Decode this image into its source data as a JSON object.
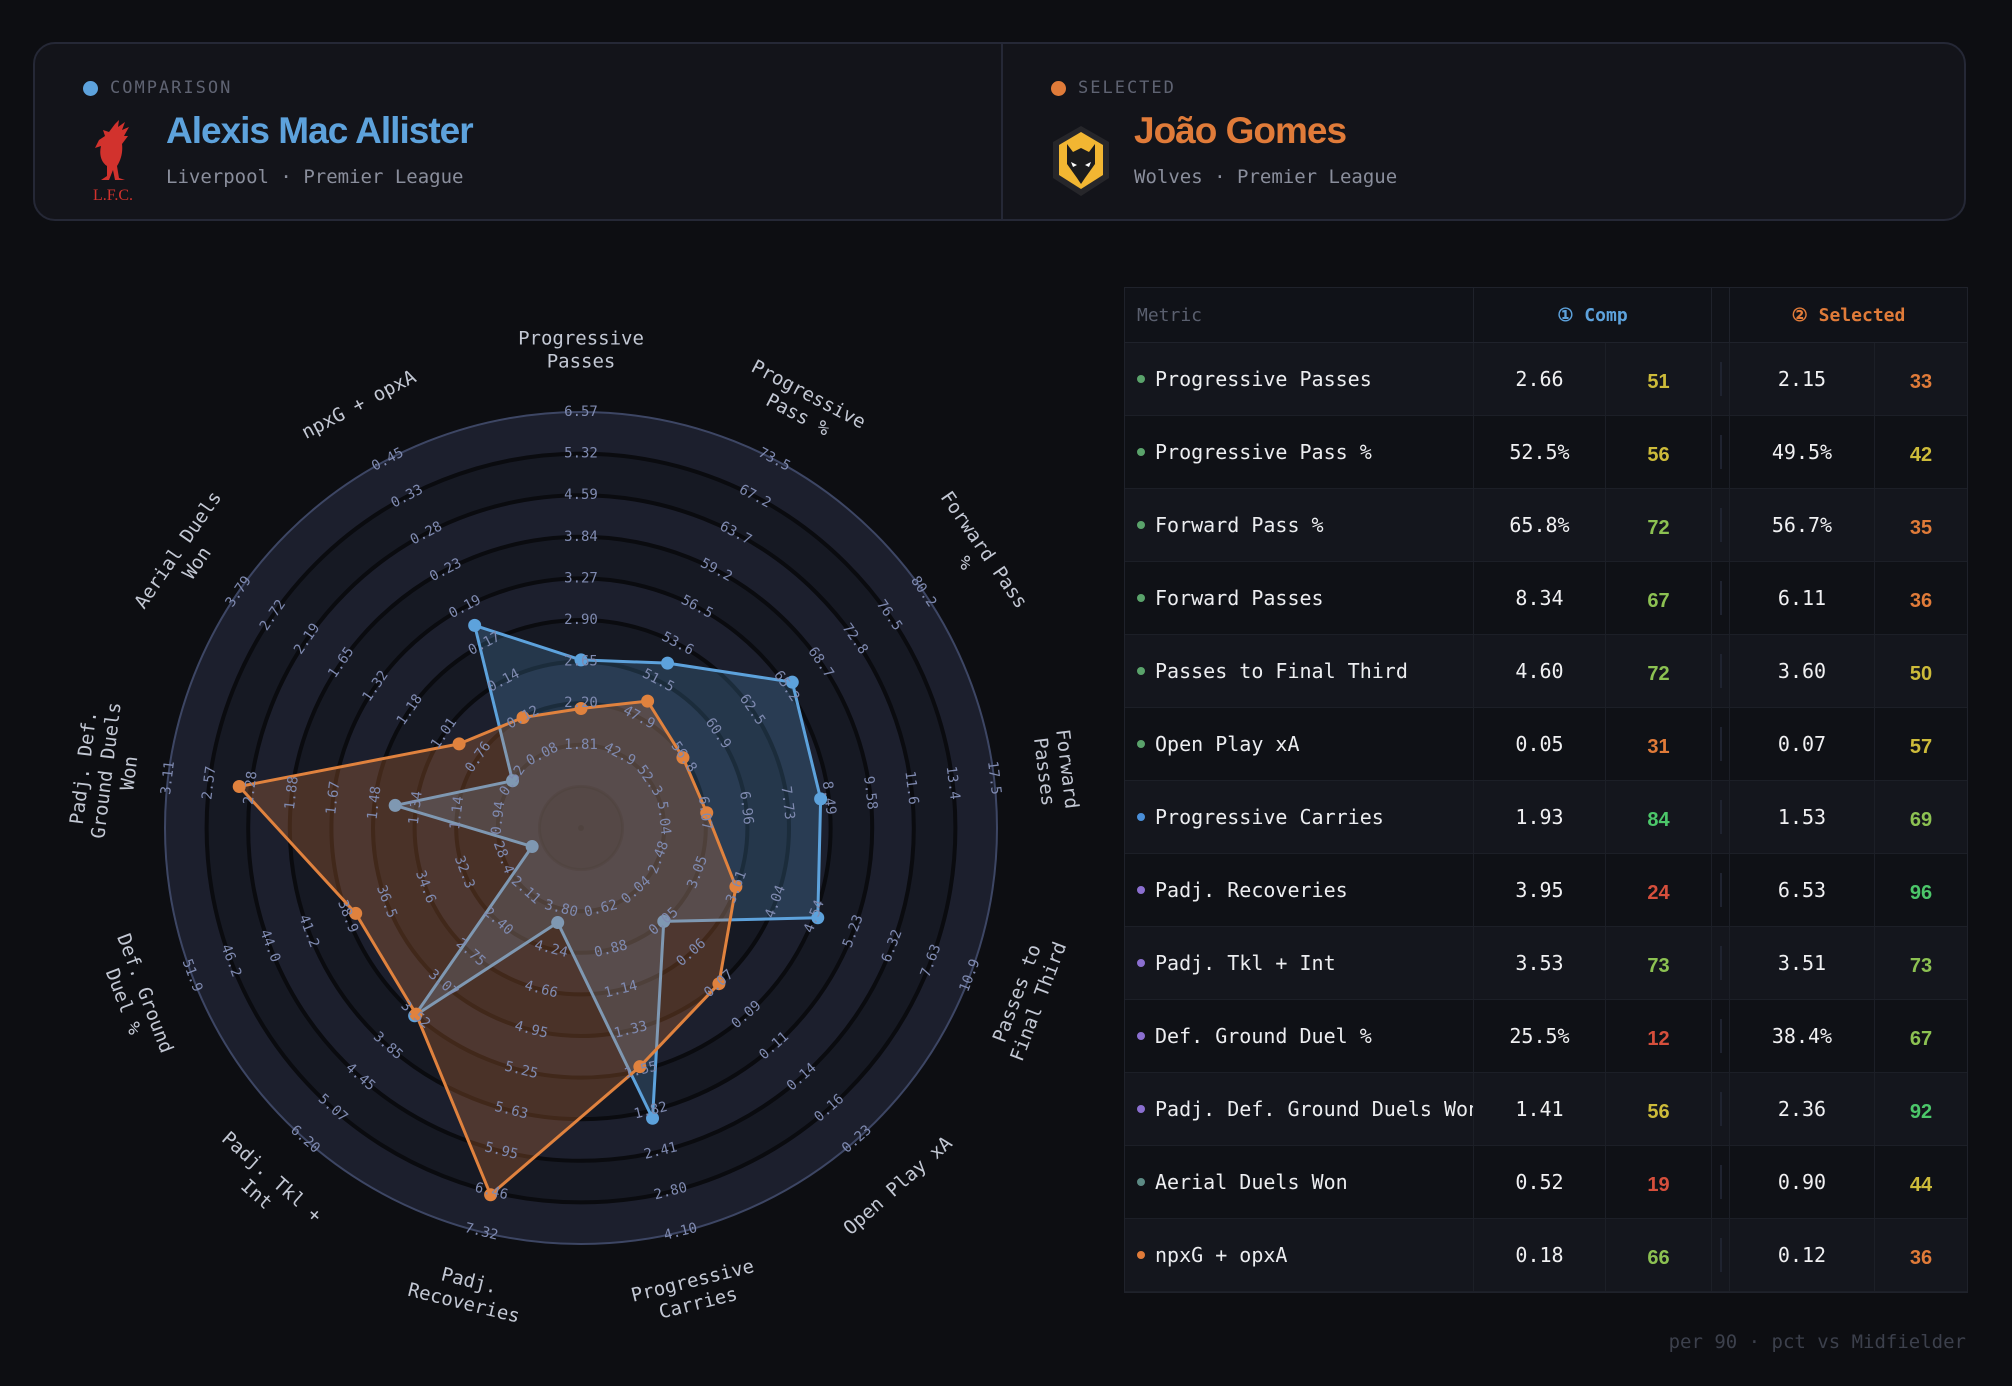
{
  "comparison": {
    "role_label": "COMPARISON",
    "name": "Alexis Mac Allister",
    "team": "Liverpool",
    "league": "Premier League",
    "separator": "·",
    "color": "#5da2dc",
    "crest_text": "L.F.C."
  },
  "selected": {
    "role_label": "SELECTED",
    "name": "João Gomes",
    "team": "Wolves",
    "league": "Premier League",
    "separator": "·",
    "color": "#e07b39"
  },
  "table": {
    "header_metric": "Metric",
    "header_comp": "① Comp",
    "header_selected": "② Selected",
    "rows": [
      {
        "metric": "Progressive Passes",
        "cat": "passing",
        "comp_value": "2.66",
        "comp_pct": 51,
        "sel_value": "2.15",
        "sel_pct": 33
      },
      {
        "metric": "Progressive Pass %",
        "cat": "passing",
        "comp_value": "52.5%",
        "comp_pct": 56,
        "sel_value": "49.5%",
        "sel_pct": 42
      },
      {
        "metric": "Forward Pass %",
        "cat": "passing",
        "comp_value": "65.8%",
        "comp_pct": 72,
        "sel_value": "56.7%",
        "sel_pct": 35
      },
      {
        "metric": "Forward Passes",
        "cat": "passing",
        "comp_value": "8.34",
        "comp_pct": 67,
        "sel_value": "6.11",
        "sel_pct": 36
      },
      {
        "metric": "Passes to Final Third",
        "cat": "passing",
        "comp_value": "4.60",
        "comp_pct": 72,
        "sel_value": "3.60",
        "sel_pct": 50
      },
      {
        "metric": "Open Play xA",
        "cat": "passing",
        "comp_value": "0.05",
        "comp_pct": 31,
        "sel_value": "0.07",
        "sel_pct": 57
      },
      {
        "metric": "Progressive Carries",
        "cat": "carrying",
        "comp_value": "1.93",
        "comp_pct": 84,
        "sel_value": "1.53",
        "sel_pct": 69
      },
      {
        "metric": "Padj. Recoveries",
        "cat": "defending",
        "comp_value": "3.95",
        "comp_pct": 24,
        "sel_value": "6.53",
        "sel_pct": 96
      },
      {
        "metric": "Padj. Tkl + Int",
        "cat": "defending",
        "comp_value": "3.53",
        "comp_pct": 73,
        "sel_value": "3.51",
        "sel_pct": 73
      },
      {
        "metric": "Def. Ground Duel %",
        "cat": "defending",
        "comp_value": "25.5%",
        "comp_pct": 12,
        "sel_value": "38.4%",
        "sel_pct": 67
      },
      {
        "metric": "Padj. Def. Ground Duels Won",
        "cat": "defending",
        "comp_value": "1.41",
        "comp_pct": 56,
        "sel_value": "2.36",
        "sel_pct": 92
      },
      {
        "metric": "Aerial Duels Won",
        "cat": "aerial",
        "comp_value": "0.52",
        "comp_pct": 19,
        "sel_value": "0.90",
        "sel_pct": 44
      },
      {
        "metric": "npxG + opxA",
        "cat": "shooting",
        "comp_value": "0.18",
        "comp_pct": 66,
        "sel_value": "0.12",
        "sel_pct": 36
      }
    ]
  },
  "category_colors": {
    "passing": "#5aa36b",
    "carrying": "#4a8fd9",
    "defending": "#8b6fd0",
    "aerial": "#5c8a84",
    "shooting": "#e07b39"
  },
  "pct_colors": {
    "low": "#d64f3c",
    "mid_low": "#e07b39",
    "mid": "#cdbb3a",
    "mid_high": "#8cc152",
    "high": "#4cc76a"
  },
  "footer": "per 90 · pct vs Midfielder",
  "chart_data": {
    "type": "radar",
    "series": [
      {
        "name": "Alexis Mac Allister",
        "color": "#5da2dc",
        "values": [
          2.66,
          52.5,
          65.8,
          8.34,
          4.6,
          0.05,
          1.93,
          3.95,
          3.53,
          25.5,
          1.41,
          0.52,
          0.18
        ]
      },
      {
        "name": "João Gomes",
        "color": "#e07b39",
        "values": [
          2.15,
          49.5,
          56.7,
          6.11,
          3.6,
          0.07,
          1.53,
          6.53,
          3.51,
          38.4,
          2.36,
          0.9,
          0.12
        ]
      }
    ],
    "axes": [
      {
        "label_lines": [
          "Progressive",
          "Passes"
        ],
        "ticks": [
          "1.81",
          "2.20",
          "2.65",
          "2.90",
          "3.27",
          "3.84",
          "4.59",
          "5.32",
          "6.57"
        ]
      },
      {
        "label_lines": [
          "Progressive",
          "Pass %"
        ],
        "ticks": [
          "42.9",
          "47.9",
          "51.5",
          "53.6",
          "56.5",
          "59.2",
          "63.7",
          "67.2",
          "73.5"
        ]
      },
      {
        "label_lines": [
          "Forward Pass",
          "%"
        ],
        "ticks": [
          "52.3",
          "56.8",
          "60.9",
          "62.5",
          "65.2",
          "68.7",
          "72.8",
          "76.5",
          "80.2"
        ]
      },
      {
        "label_lines": [
          "Forward",
          "Passes"
        ],
        "ticks": [
          "5.04",
          "6.07",
          "6.96",
          "7.73",
          "8.49",
          "9.58",
          "11.6",
          "13.4",
          "17.5"
        ]
      },
      {
        "label_lines": [
          "Passes to",
          "Final Third"
        ],
        "ticks": [
          "2.48",
          "3.05",
          "3.61",
          "4.04",
          "4.54",
          "5.23",
          "6.32",
          "7.63",
          "10.9"
        ]
      },
      {
        "label_lines": [
          "Open Play xA"
        ],
        "ticks": [
          "0.04",
          "0.05",
          "0.06",
          "0.07",
          "0.09",
          "0.11",
          "0.14",
          "0.16",
          "0.23"
        ]
      },
      {
        "label_lines": [
          "Progressive",
          "Carries"
        ],
        "ticks": [
          "0.62",
          "0.88",
          "1.14",
          "1.33",
          "1.55",
          "1.82",
          "2.41",
          "2.80",
          "4.10"
        ]
      },
      {
        "label_lines": [
          "Padj.",
          "Recoveries"
        ],
        "ticks": [
          "3.80",
          "4.24",
          "4.66",
          "4.95",
          "5.25",
          "5.63",
          "5.95",
          "6.46",
          "7.32"
        ]
      },
      {
        "label_lines": [
          "Padj. Tkl +",
          "Int"
        ],
        "ticks": [
          "2.11",
          "2.40",
          "2.75",
          "3.07",
          "3.52",
          "3.85",
          "4.45",
          "5.07",
          "6.20"
        ]
      },
      {
        "label_lines": [
          "Def. Ground",
          "Duel %"
        ],
        "ticks": [
          "28.4",
          "32.3",
          "34.6",
          "36.5",
          "38.9",
          "41.2",
          "44.0",
          "46.2",
          "51.9"
        ]
      },
      {
        "label_lines": [
          "Padj. Def.",
          "Ground Duels",
          "Won"
        ],
        "ticks": [
          "0.94",
          "1.14",
          "1.34",
          "1.48",
          "1.67",
          "1.88",
          "2.28",
          "2.57",
          "3.11"
        ]
      },
      {
        "label_lines": [
          "Aerial Duels",
          "Won"
        ],
        "ticks": [
          "0.52",
          "0.76",
          "1.01",
          "1.18",
          "1.32",
          "1.65",
          "2.19",
          "2.72",
          "3.79"
        ]
      },
      {
        "label_lines": [
          "npxG + opxA"
        ],
        "ticks": [
          "0.08",
          "0.12",
          "0.14",
          "0.17",
          "0.19",
          "0.23",
          "0.28",
          "0.33",
          "0.45"
        ]
      }
    ]
  }
}
